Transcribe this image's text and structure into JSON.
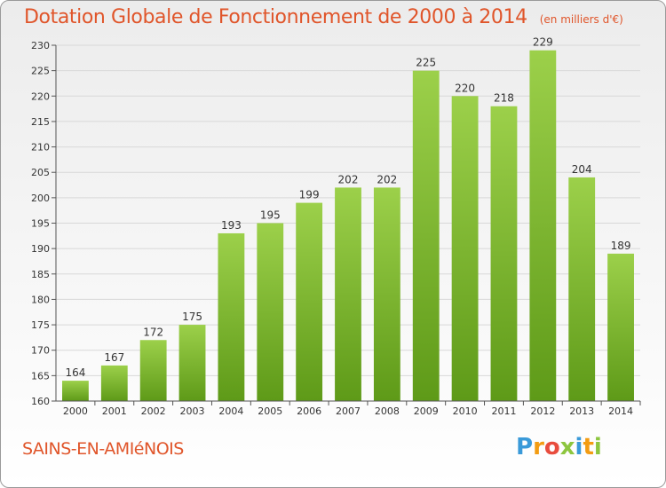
{
  "header": {
    "title": "Dotation Globale de Fonctionnement de 2000 à 2014",
    "unit": "(en milliers d'€)"
  },
  "footer": {
    "commune": "SAINS-EN-AMIéNOIS",
    "brand_letters": [
      "P",
      "r",
      "o",
      "x",
      "i",
      "t",
      "i"
    ],
    "brand_colors": [
      "#3a9ad9",
      "#f39c12",
      "#e84c3d",
      "#8dc63f",
      "#3a9ad9",
      "#f39c12",
      "#8dc63f"
    ]
  },
  "chart_data": {
    "type": "bar",
    "categories": [
      "2000",
      "2001",
      "2002",
      "2003",
      "2004",
      "2005",
      "2006",
      "2007",
      "2008",
      "2009",
      "2010",
      "2011",
      "2012",
      "2013",
      "2014"
    ],
    "values": [
      164,
      167,
      172,
      175,
      193,
      195,
      199,
      202,
      202,
      225,
      220,
      218,
      229,
      204,
      189
    ],
    "title": "Dotation Globale de Fonctionnement de 2000 à 2014",
    "subtitle": "(en milliers d'€)",
    "ylim": [
      160,
      230
    ],
    "yticks": [
      160,
      165,
      170,
      175,
      180,
      185,
      190,
      195,
      200,
      205,
      210,
      215,
      220,
      225,
      230
    ],
    "grid": true,
    "bar_color_top": "#9cd04a",
    "bar_color_bottom": "#5e9a18"
  }
}
